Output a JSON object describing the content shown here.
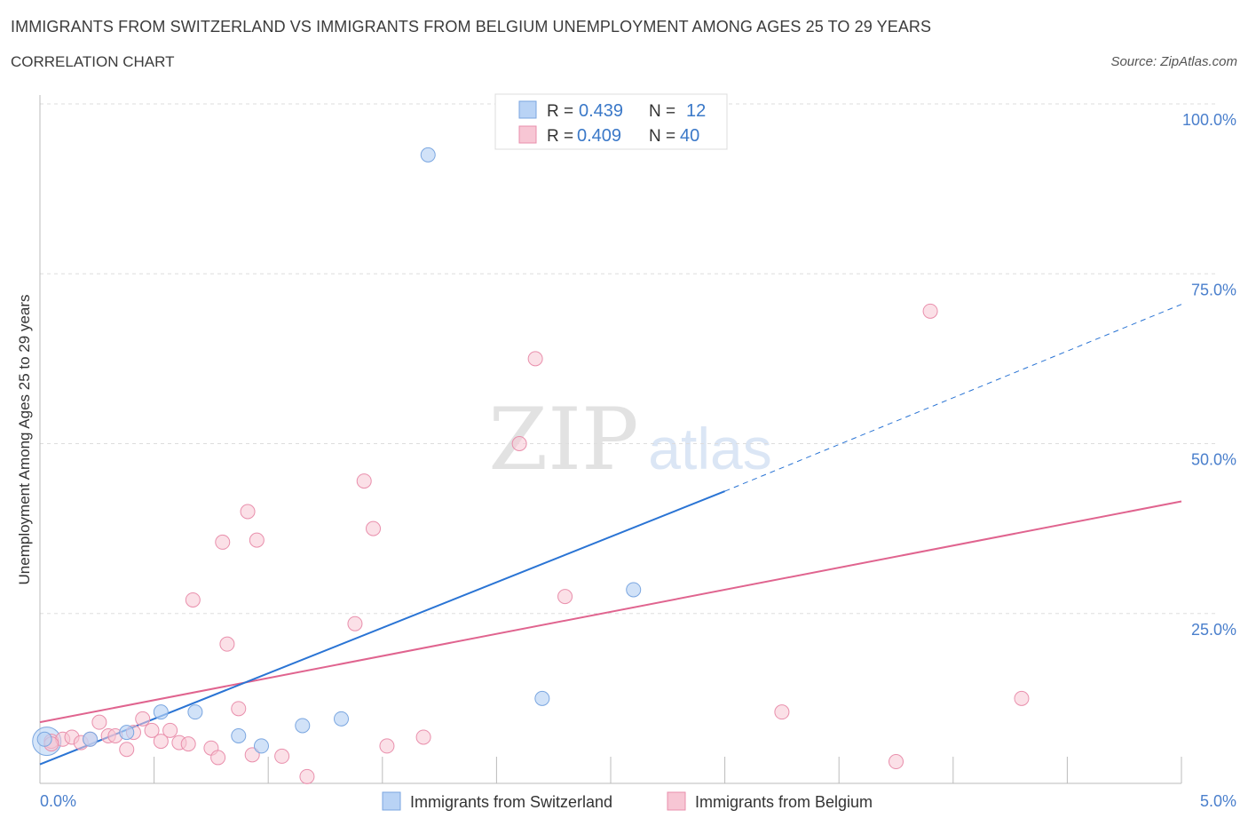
{
  "header": {
    "title": "IMMIGRANTS FROM SWITZERLAND VS IMMIGRANTS FROM BELGIUM UNEMPLOYMENT AMONG AGES 25 TO 29 YEARS",
    "subtitle": "CORRELATION CHART",
    "source": "Source: ZipAtlas.com"
  },
  "watermark": {
    "zip": "ZIP",
    "atlas": "atlas"
  },
  "stats": {
    "r_label": "R =",
    "n_label": "N =",
    "switzerland": {
      "r": "0.439",
      "n": "12"
    },
    "belgium": {
      "r": "0.409",
      "n": "40"
    }
  },
  "colors": {
    "switzerland_fill": "#b9d3f5",
    "switzerland_stroke": "#7aa6e0",
    "switzerland_line": "#2a74d4",
    "belgium_fill": "#f7c6d4",
    "belgium_stroke": "#e98fac",
    "belgium_line": "#e0648f"
  },
  "chart_data": {
    "type": "scatter",
    "title": "IMMIGRANTS FROM SWITZERLAND VS IMMIGRANTS FROM BELGIUM UNEMPLOYMENT AMONG AGES 25 TO 29 YEARS",
    "xlabel": "",
    "ylabel": "Unemployment Among Ages 25 to 29 years",
    "xlim": [
      0,
      5
    ],
    "ylim": [
      0,
      100
    ],
    "x_tick_labels": [
      "0.0%",
      "5.0%"
    ],
    "y_tick_labels": [
      "25.0%",
      "50.0%",
      "75.0%",
      "100.0%"
    ],
    "y_ticks": [
      25,
      50,
      75,
      100
    ],
    "grid": true,
    "legend_position": "bottom",
    "series": [
      {
        "name": "Immigrants from Switzerland",
        "points": [
          [
            0.02,
            6.5
          ],
          [
            0.22,
            6.5
          ],
          [
            0.38,
            7.5
          ],
          [
            0.53,
            10.5
          ],
          [
            0.68,
            10.5
          ],
          [
            0.87,
            7.0
          ],
          [
            0.97,
            5.5
          ],
          [
            1.15,
            8.5
          ],
          [
            1.32,
            9.5
          ],
          [
            1.7,
            92.5
          ],
          [
            2.2,
            12.5
          ],
          [
            2.6,
            28.5
          ]
        ],
        "trend": {
          "x0": 0.0,
          "y0": 2.8,
          "x1": 3.0,
          "y1": 43.0,
          "dashed_to": [
            5.0,
            70.5
          ]
        }
      },
      {
        "name": "Immigrants from Belgium",
        "points": [
          [
            0.05,
            6.2
          ],
          [
            0.1,
            6.5
          ],
          [
            0.14,
            6.8
          ],
          [
            0.18,
            6.0
          ],
          [
            0.22,
            6.5
          ],
          [
            0.26,
            9.0
          ],
          [
            0.3,
            7.0
          ],
          [
            0.33,
            7.0
          ],
          [
            0.38,
            5.0
          ],
          [
            0.41,
            7.5
          ],
          [
            0.45,
            9.5
          ],
          [
            0.49,
            7.8
          ],
          [
            0.53,
            6.2
          ],
          [
            0.57,
            7.8
          ],
          [
            0.61,
            6.0
          ],
          [
            0.65,
            5.8
          ],
          [
            0.67,
            27.0
          ],
          [
            0.75,
            5.2
          ],
          [
            0.78,
            3.8
          ],
          [
            0.8,
            35.5
          ],
          [
            0.82,
            20.5
          ],
          [
            0.87,
            11.0
          ],
          [
            0.91,
            40.0
          ],
          [
            0.93,
            4.2
          ],
          [
            0.95,
            35.8
          ],
          [
            1.06,
            4.0
          ],
          [
            1.17,
            1.0
          ],
          [
            1.38,
            23.5
          ],
          [
            1.42,
            44.5
          ],
          [
            1.46,
            37.5
          ],
          [
            1.52,
            5.5
          ],
          [
            1.68,
            6.8
          ],
          [
            2.1,
            50.0
          ],
          [
            2.17,
            62.5
          ],
          [
            2.3,
            27.5
          ],
          [
            3.25,
            10.5
          ],
          [
            3.75,
            3.2
          ],
          [
            3.9,
            69.5
          ],
          [
            4.3,
            12.5
          ],
          [
            0.05,
            5.8
          ]
        ],
        "trend": {
          "x0": 0.0,
          "y0": 9.0,
          "x1": 5.0,
          "y1": 41.5
        }
      }
    ]
  }
}
